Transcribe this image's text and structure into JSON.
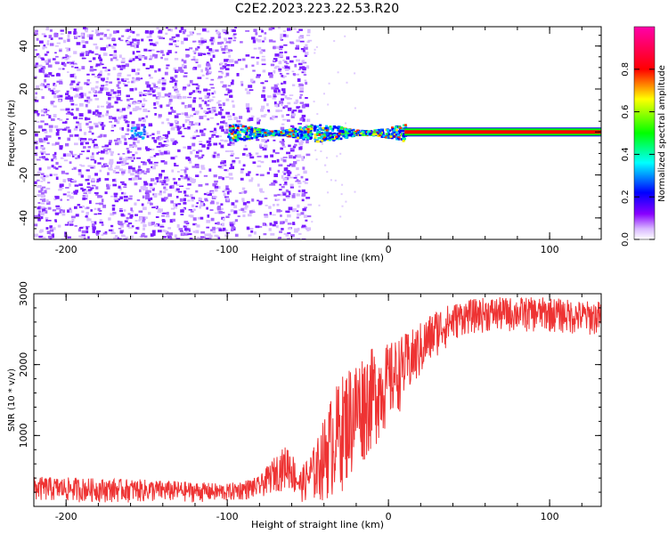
{
  "title": "C2E2.2023.223.22.53.R20",
  "chart_data": [
    {
      "type": "heatmap",
      "xlabel": "Height of straight line (km)",
      "ylabel": "Frequency (Hz)",
      "xlim": [
        -220,
        132
      ],
      "ylim": [
        -50,
        49
      ],
      "xticks": [
        -200,
        -100,
        0,
        100
      ],
      "yticks": [
        -40,
        -20,
        0,
        20,
        40
      ],
      "colorbar": {
        "label": "Normalized spectral amplitude",
        "range": [
          0,
          1
        ],
        "ticks": [
          0.0,
          0.2,
          0.4,
          0.6,
          0.8
        ],
        "colormap": [
          "#ffffff",
          "#8800ff",
          "#0000ff",
          "#00ffff",
          "#00ff00",
          "#ffff00",
          "#ff0000",
          "#ff00aa"
        ]
      },
      "features": {
        "noise_region_x": [
          -220,
          -50
        ],
        "signal_line_frequency": 0,
        "signal_onset_x": -100,
        "saturated_line_start_x": 10
      }
    },
    {
      "type": "line",
      "xlabel": "Height of straight line (km)",
      "ylabel": "SNR (10 * v/v)",
      "xlim": [
        -220,
        132
      ],
      "ylim": [
        0,
        3000
      ],
      "xticks": [
        -200,
        -100,
        0,
        100
      ],
      "yticks": [
        1000,
        2000,
        3000
      ],
      "color": "#ee3333",
      "envelope": {
        "x": [
          -220,
          -150,
          -100,
          -80,
          -70,
          -62,
          -55,
          -45,
          -35,
          -25,
          -15,
          0,
          15,
          30,
          45,
          60,
          80,
          100,
          120,
          132
        ],
        "low": [
          60,
          50,
          60,
          110,
          200,
          230,
          60,
          30,
          80,
          280,
          600,
          1100,
          1600,
          2100,
          2400,
          2450,
          2450,
          2450,
          2400,
          2400
        ],
        "high": [
          420,
          380,
          320,
          420,
          720,
          900,
          500,
          900,
          1600,
          2000,
          2200,
          2300,
          2500,
          2800,
          2900,
          2950,
          2950,
          2950,
          2900,
          2900
        ]
      }
    }
  ]
}
